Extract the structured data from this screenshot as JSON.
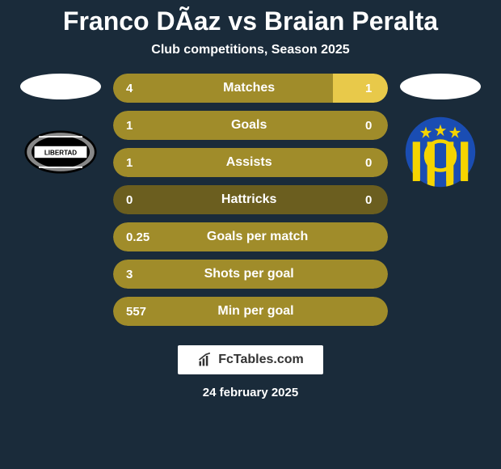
{
  "title": "Franco DÃaz vs Braian Peralta",
  "subtitle": "Club competitions, Season 2025",
  "date": "24 february 2025",
  "colors": {
    "background": "#1a2b3a",
    "bar_olive": "#a08c2a",
    "bar_olive_dark": "#6b5e1f",
    "bar_yellow": "#e8c94a",
    "text": "#ffffff"
  },
  "badge_left": {
    "type": "oval",
    "colors": [
      "#000000",
      "#ffffff",
      "#888888"
    ]
  },
  "badge_right": {
    "type": "circle",
    "colors": [
      "#1a4db3",
      "#f5d400"
    ]
  },
  "stats": [
    {
      "label": "Matches",
      "left_val": "4",
      "right_val": "1",
      "left_pct": 80,
      "right_pct": 20,
      "left_color": "#a08c2a",
      "right_color": "#e8c94a",
      "bg_color": "#a08c2a"
    },
    {
      "label": "Goals",
      "left_val": "1",
      "right_val": "0",
      "left_pct": 100,
      "right_pct": 0,
      "left_color": "#a08c2a",
      "right_color": "#a08c2a",
      "bg_color": "#a08c2a"
    },
    {
      "label": "Assists",
      "left_val": "1",
      "right_val": "0",
      "left_pct": 100,
      "right_pct": 0,
      "left_color": "#a08c2a",
      "right_color": "#a08c2a",
      "bg_color": "#a08c2a"
    },
    {
      "label": "Hattricks",
      "left_val": "0",
      "right_val": "0",
      "left_pct": 0,
      "right_pct": 0,
      "left_color": "#6b5e1f",
      "right_color": "#6b5e1f",
      "bg_color": "#6b5e1f"
    },
    {
      "label": "Goals per match",
      "left_val": "0.25",
      "right_val": "",
      "left_pct": 100,
      "right_pct": 0,
      "left_color": "#a08c2a",
      "right_color": "#a08c2a",
      "bg_color": "#a08c2a"
    },
    {
      "label": "Shots per goal",
      "left_val": "3",
      "right_val": "",
      "left_pct": 100,
      "right_pct": 0,
      "left_color": "#a08c2a",
      "right_color": "#a08c2a",
      "bg_color": "#a08c2a"
    },
    {
      "label": "Min per goal",
      "left_val": "557",
      "right_val": "",
      "left_pct": 100,
      "right_pct": 0,
      "left_color": "#a08c2a",
      "right_color": "#a08c2a",
      "bg_color": "#a08c2a"
    }
  ],
  "logo_text": "FcTables.com"
}
